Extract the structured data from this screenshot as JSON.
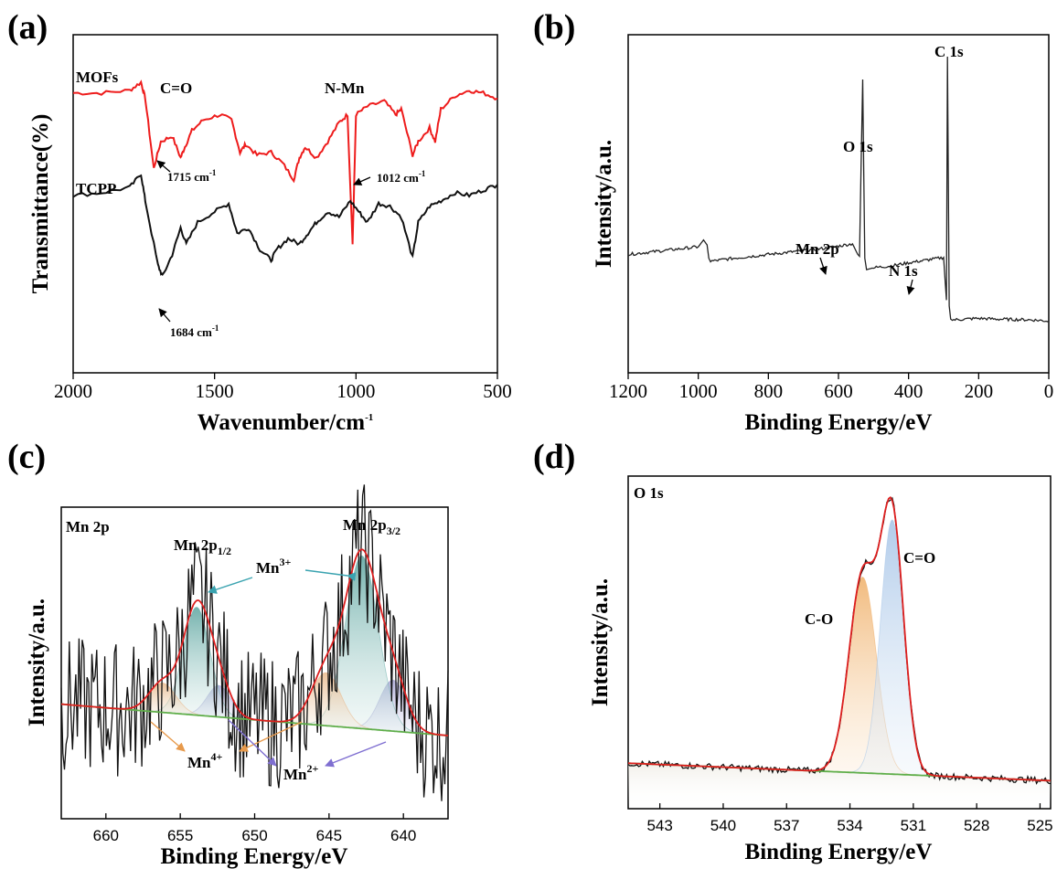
{
  "panels": {
    "a": {
      "label": "(a)",
      "ylabel": "Transmittance(%)",
      "xlabel": "Wavenumber/cm",
      "xlabel_sup": "-1",
      "series_labels": [
        "MOFs",
        "TCPP"
      ],
      "annotations": {
        "co": "C=O",
        "nmn": "N-Mn",
        "peak1715": "1715 cm",
        "peak1012": "1012 cm",
        "peak1684": "1684 cm",
        "unit_sup": "-1"
      }
    },
    "b": {
      "label": "(b)",
      "ylabel": "Intensity/a.u.",
      "xlabel": "Binding Energy/eV",
      "annotations": {
        "c1s": "C 1s",
        "o1s": "O 1s",
        "mn2p": "Mn 2p",
        "n1s": "N 1s"
      }
    },
    "c": {
      "label": "(c)",
      "ylabel": "Intensity/a.u.",
      "xlabel": "Binding Energy/eV",
      "annotations": {
        "title": "Mn 2p",
        "mn2p12": "Mn 2p",
        "mn2p12_sub": "1/2",
        "mn2p32": "Mn 2p",
        "mn2p32_sub": "3/2",
        "mn3": "Mn",
        "mn3_sup": "3+",
        "mn4": "Mn",
        "mn4_sup": "4+",
        "mn2": "Mn",
        "mn2_sup": "2+"
      }
    },
    "d": {
      "label": "(d)",
      "ylabel": "Intensity/a.u.",
      "xlabel": "Binding Energy/eV",
      "annotations": {
        "title": "O 1s",
        "co_double": "C=O",
        "co_single": "C-O"
      }
    }
  },
  "colors": {
    "mofs": "#ee1c1c",
    "tcpp": "#111111",
    "envelope": "#dd1e1e",
    "background": "#5fae4a",
    "mn3_fill": "#6fb2ad",
    "mn4_fill": "#e8b88a",
    "mn2_fill": "#a9a6d6",
    "co_double_fill": "#a9c6e8",
    "co_single_fill": "#f0b36f",
    "arrow_teal": "#3aa3b0",
    "arrow_orange": "#e79a4c",
    "arrow_purple": "#7f6fd1"
  },
  "chart_data": [
    {
      "panel": "a",
      "type": "line",
      "xlabel": "Wavenumber/cm-1",
      "ylabel": "Transmittance(%)",
      "xlim": [
        2000,
        500
      ],
      "xticks": [
        "2000",
        "1500",
        "1000",
        "500"
      ],
      "series": [
        {
          "name": "MOFs",
          "x": [
            2000,
            1900,
            1800,
            1760,
            1745,
            1715,
            1690,
            1650,
            1620,
            1605,
            1580,
            1540,
            1480,
            1440,
            1410,
            1390,
            1350,
            1300,
            1260,
            1220,
            1200,
            1180,
            1140,
            1100,
            1060,
            1030,
            1012,
            1000,
            960,
            900,
            860,
            840,
            800,
            780,
            740,
            720,
            700,
            650,
            600,
            550,
            500
          ],
          "y": [
            96,
            96,
            97,
            100,
            94,
            68,
            78,
            80,
            72,
            76,
            82,
            86,
            88,
            86,
            74,
            77,
            73,
            74,
            70,
            64,
            72,
            76,
            72,
            78,
            85,
            88,
            40,
            88,
            91,
            93,
            88,
            90,
            73,
            78,
            83,
            78,
            90,
            95,
            97,
            96,
            94
          ]
        },
        {
          "name": "TCPP",
          "x": [
            2000,
            1900,
            1800,
            1760,
            1745,
            1700,
            1684,
            1650,
            1620,
            1600,
            1560,
            1500,
            1450,
            1420,
            1380,
            1340,
            1300,
            1280,
            1240,
            1200,
            1170,
            1140,
            1100,
            1060,
            1020,
            990,
            960,
            920,
            880,
            840,
            800,
            780,
            740,
            700,
            650,
            600,
            550,
            500
          ],
          "y": [
            58,
            59,
            61,
            66,
            56,
            32,
            28,
            36,
            46,
            40,
            48,
            52,
            55,
            44,
            46,
            38,
            34,
            38,
            42,
            40,
            44,
            48,
            52,
            50,
            56,
            52,
            48,
            55,
            54,
            50,
            35,
            48,
            54,
            56,
            59,
            58,
            60,
            62
          ]
        }
      ]
    },
    {
      "panel": "b",
      "type": "line",
      "xlabel": "Binding Energy/eV",
      "ylabel": "Intensity/a.u.",
      "xlim": [
        1200,
        0
      ],
      "xticks": [
        "1200",
        "1000",
        "800",
        "600",
        "400",
        "200",
        "0"
      ],
      "series": [
        {
          "x": [
            1200,
            1100,
            1000,
            985,
            975,
            970,
            965,
            900,
            800,
            700,
            640,
            600,
            560,
            545,
            540,
            531,
            525,
            520,
            500,
            450,
            400,
            350,
            300,
            292,
            289,
            284,
            280,
            275,
            200,
            150,
            100,
            50,
            0
          ],
          "y": [
            280,
            290,
            300,
            318,
            305,
            270,
            262,
            270,
            280,
            290,
            296,
            302,
            308,
            280,
            275,
            740,
            270,
            240,
            245,
            250,
            258,
            265,
            272,
            160,
            800,
            145,
            110,
            108,
            112,
            110,
            109,
            108,
            105
          ]
        }
      ]
    },
    {
      "panel": "c",
      "type": "line",
      "xlabel": "Binding Energy/eV",
      "ylabel": "Intensity/a.u.",
      "xlim": [
        663,
        637
      ],
      "xticks": [
        "660",
        "655",
        "650",
        "645",
        "640"
      ],
      "peaks": [
        {
          "name": "Mn2+ 2p3/2",
          "center": 640.7,
          "height": 26,
          "width": 0.9
        },
        {
          "name": "Mn3+ 2p3/2",
          "center": 642.8,
          "height": 88,
          "width": 1.1
        },
        {
          "name": "Mn4+ 2p3/2",
          "center": 645.2,
          "height": 27,
          "width": 1.0
        },
        {
          "name": "Mn2+ 2p1/2",
          "center": 652.4,
          "height": 16,
          "width": 0.8
        },
        {
          "name": "Mn3+ 2p1/2",
          "center": 653.9,
          "height": 55,
          "width": 0.9
        },
        {
          "name": "Mn4+ 2p1/2",
          "center": 656.2,
          "height": 15,
          "width": 0.9
        }
      ],
      "background_range": [
        16,
        0
      ]
    },
    {
      "panel": "d",
      "type": "line",
      "xlabel": "Binding Energy/eV",
      "ylabel": "Intensity/a.u.",
      "xlim": [
        544.5,
        524.5
      ],
      "xticks": [
        "543",
        "540",
        "537",
        "534",
        "531",
        "528",
        "525"
      ],
      "peaks": [
        {
          "name": "C-O",
          "center": 533.4,
          "height": 67,
          "width": 0.65
        },
        {
          "name": "C=O",
          "center": 532.0,
          "height": 87,
          "width": 0.55
        }
      ],
      "background_range": [
        14,
        8
      ]
    }
  ]
}
